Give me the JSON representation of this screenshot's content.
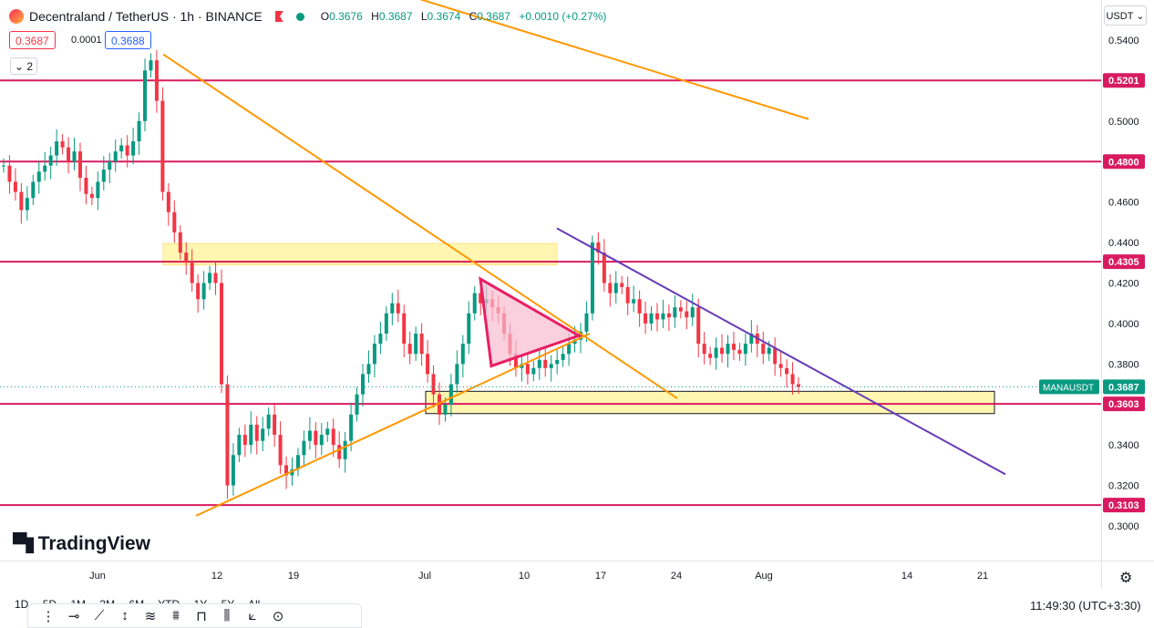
{
  "header": {
    "symbol_title": "Decentraland / TetherUS · 1h · BINANCE",
    "open_label": "O",
    "open": "0.3676",
    "high_label": "H",
    "high": "0.3687",
    "low_label": "L",
    "low": "0.3674",
    "close_label": "C",
    "close": "0.3687",
    "change": "+0.0010 (+0.27%)",
    "sell_price": "0.3687",
    "spread": "0.0001",
    "buy_price": "0.3688",
    "indicators_count": "2",
    "currency": "USDT"
  },
  "branding": {
    "logo_text": "TradingView"
  },
  "bottom": {
    "ranges": [
      "1D",
      "5D",
      "1M",
      "3M",
      "6M",
      "YTD",
      "1Y",
      "5Y",
      "All"
    ],
    "clock": "11:49:30 (UTC+3:30)"
  },
  "chart_data": {
    "type": "candlestick",
    "title": "Decentraland / TetherUS · 1h · BINANCE",
    "y_axis_ticks": [
      "0.5400",
      "0.5000",
      "0.4600",
      "0.4400",
      "0.4200",
      "0.4000",
      "0.3800",
      "0.3400",
      "0.3200",
      "0.3000"
    ],
    "ylim": [
      0.295,
      0.543
    ],
    "x_axis_ticks": [
      "Jun",
      "12",
      "19",
      "Jul",
      "10",
      "17",
      "24",
      "Aug",
      "14",
      "21"
    ],
    "price_labels": [
      {
        "text": "0.5201",
        "value": 0.5201
      },
      {
        "text": "0.4800",
        "value": 0.48
      },
      {
        "text": "0.4305",
        "value": 0.4305
      },
      {
        "text": "0.3603",
        "value": 0.3603
      },
      {
        "text": "0.3103",
        "value": 0.3103
      }
    ],
    "last_price": {
      "symbol": "MANAUSDT",
      "value": "0.3687"
    },
    "horizontal_levels": [
      0.5201,
      0.48,
      0.4305,
      0.3603,
      0.3103
    ],
    "zones": [
      {
        "from": "Jun 7",
        "to": "Jul 13",
        "low": 0.429,
        "high": 0.4395
      },
      {
        "from": "Jul 1",
        "to": "Aug 22",
        "low": 0.3555,
        "high": 0.3665
      }
    ],
    "trendlines": [
      {
        "color": "#ff9800",
        "points": [
          [
            "Jun 7",
            0.533
          ],
          [
            "Jul 24",
            0.363
          ]
        ]
      },
      {
        "color": "#ff9800",
        "points": [
          [
            "Jun 10",
            0.305
          ],
          [
            "Jul 16",
            0.395
          ]
        ]
      },
      {
        "color": "#ff9800",
        "points": [
          [
            "Jun 21",
            0.576
          ],
          [
            "Aug 5",
            0.501
          ]
        ]
      },
      {
        "color": "#673ab7",
        "points": [
          [
            "Jul 13",
            0.447
          ],
          [
            "Aug 23",
            0.3255
          ]
        ]
      }
    ],
    "pattern_triangle": {
      "color": "#e91e63",
      "points": [
        [
          "Jul 6",
          0.422
        ],
        [
          "Jul 7",
          0.379
        ],
        [
          "Jul 15",
          0.394
        ]
      ]
    },
    "series": [
      {
        "name": "MANAUSDT",
        "close": [
          0.478,
          0.47,
          0.465,
          0.456,
          0.462,
          0.47,
          0.475,
          0.478,
          0.483,
          0.49,
          0.487,
          0.48,
          0.485,
          0.472,
          0.464,
          0.462,
          0.47,
          0.476,
          0.48,
          0.485,
          0.488,
          0.483,
          0.49,
          0.5,
          0.525,
          0.53,
          0.51,
          0.465,
          0.455,
          0.445,
          0.435,
          0.43,
          0.42,
          0.412,
          0.42,
          0.425,
          0.42,
          0.37,
          0.32,
          0.335,
          0.345,
          0.34,
          0.35,
          0.342,
          0.348,
          0.355,
          0.345,
          0.33,
          0.325,
          0.328,
          0.335,
          0.342,
          0.347,
          0.34,
          0.345,
          0.348,
          0.34,
          0.333,
          0.342,
          0.355,
          0.365,
          0.375,
          0.38,
          0.39,
          0.395,
          0.405,
          0.41,
          0.405,
          0.39,
          0.385,
          0.395,
          0.385,
          0.375,
          0.365,
          0.355,
          0.36,
          0.37,
          0.38,
          0.39,
          0.405,
          0.415,
          0.41,
          0.412,
          0.408,
          0.405,
          0.395,
          0.385,
          0.378,
          0.38,
          0.375,
          0.378,
          0.382,
          0.378,
          0.38,
          0.382,
          0.385,
          0.39,
          0.392,
          0.396,
          0.405,
          0.44,
          0.435,
          0.42,
          0.415,
          0.42,
          0.418,
          0.41,
          0.412,
          0.405,
          0.4,
          0.405,
          0.402,
          0.405,
          0.403,
          0.408,
          0.406,
          0.403,
          0.408,
          0.39,
          0.385,
          0.383,
          0.388,
          0.385,
          0.39,
          0.387,
          0.385,
          0.39,
          0.395,
          0.39,
          0.385,
          0.388,
          0.38,
          0.378,
          0.375,
          0.37,
          0.3687
        ]
      }
    ]
  }
}
